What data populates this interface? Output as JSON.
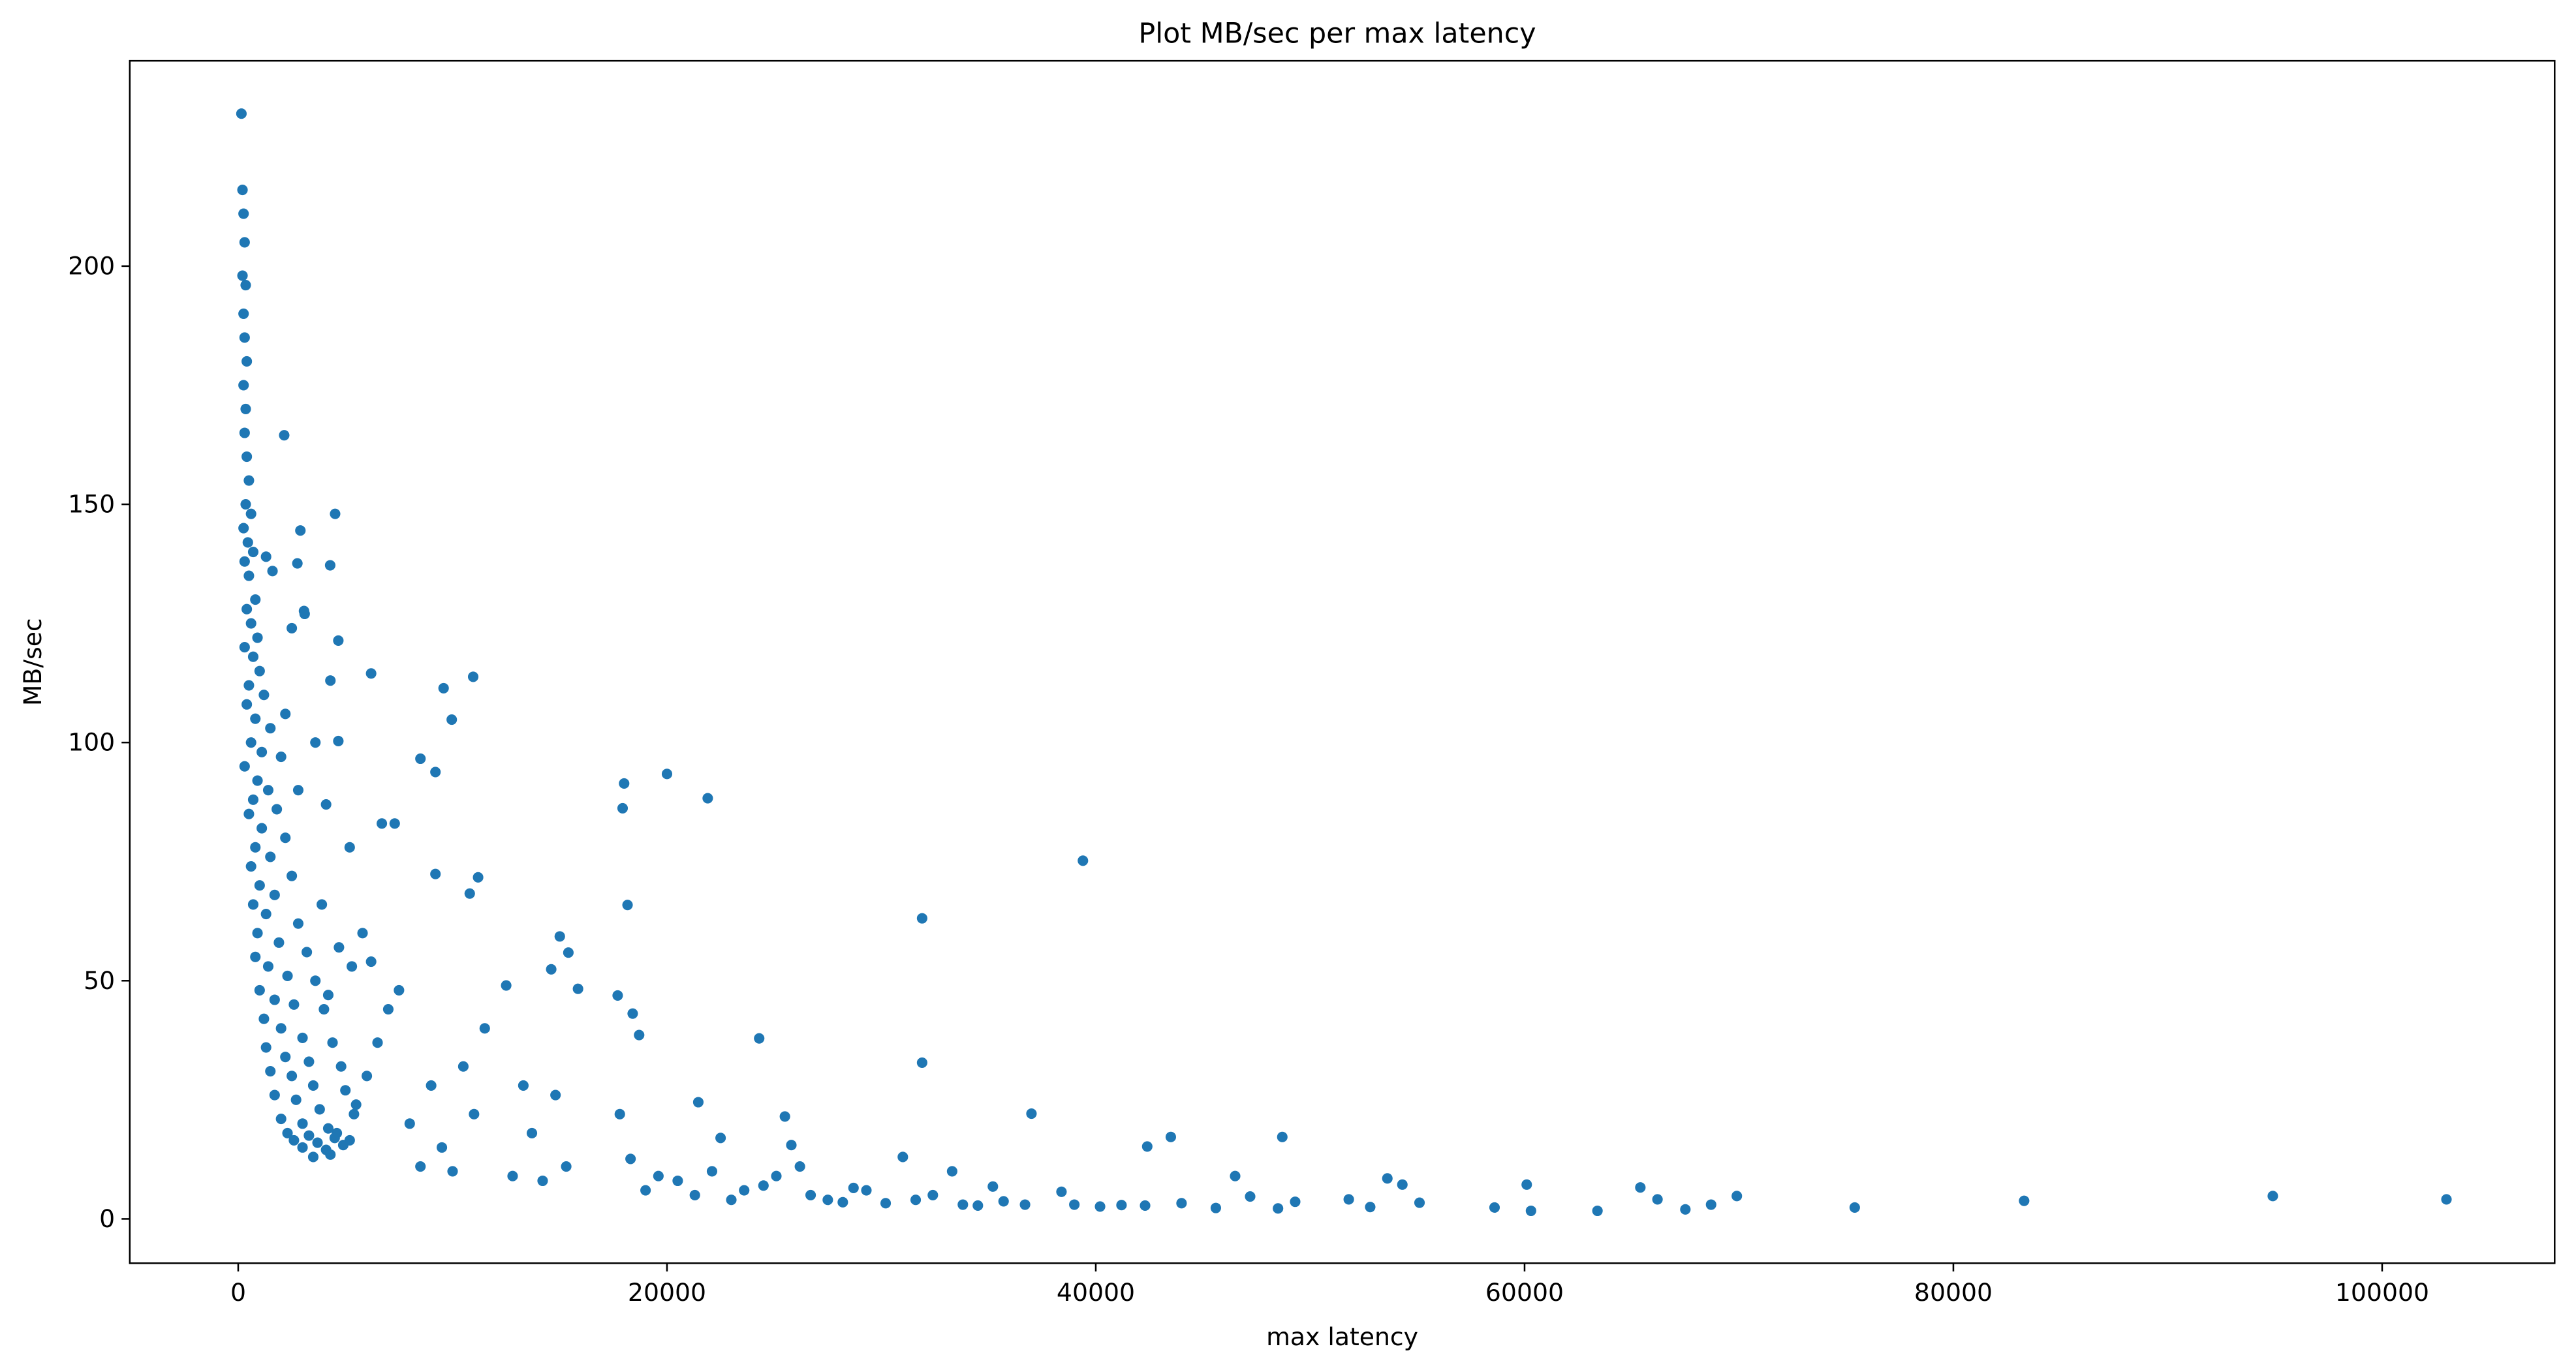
{
  "chart_data": {
    "type": "scatter",
    "title": "Plot MB/sec per max latency",
    "x_label": "max latency",
    "y_label": "MB/sec",
    "color": "#1f77b4",
    "x": [
      150,
      200,
      250,
      300,
      200,
      350,
      250,
      300,
      400,
      250,
      350,
      300,
      400,
      500,
      350,
      600,
      250,
      450,
      700,
      300,
      500,
      800,
      400,
      600,
      900,
      300,
      700,
      1000,
      500,
      1200,
      400,
      800,
      1500,
      600,
      1100,
      2000,
      300,
      900,
      1400,
      700,
      1800,
      500,
      1100,
      2200,
      800,
      1500,
      600,
      2500,
      1000,
      1700,
      700,
      1300,
      2800,
      900,
      1900,
      3200,
      800,
      1400,
      2300,
      3600,
      1000,
      1700,
      2600,
      4000,
      1200,
      2000,
      3000,
      4400,
      1300,
      2200,
      3300,
      4800,
      1500,
      2500,
      3500,
      5000,
      1700,
      2700,
      3800,
      5400,
      2000,
      3000,
      4200,
      2300,
      3300,
      4500,
      2600,
      3700,
      4900,
      3000,
      4100,
      4300,
      3500,
      5200,
      4600,
      5500,
      6000,
      6500,
      7000,
      6200,
      7500,
      8000,
      8500,
      9000,
      9500,
      10000,
      10500,
      11000,
      11500,
      12500,
      12800,
      13300,
      13700,
      14200,
      14800,
      15300,
      6700,
      7300,
      5800,
      5200,
      4100,
      4300,
      2500,
      3100,
      1600,
      1300,
      2200,
      3600,
      2800,
      4700,
      5300,
      3900,
      4200,
      2145,
      4520,
      2900,
      2760,
      4290,
      3070,
      4670,
      6200,
      10960,
      9580,
      9960,
      4670,
      8500,
      9200,
      18000,
      20000,
      21900,
      17930,
      39400,
      11190,
      9200,
      10800,
      18160,
      31900,
      15000,
      15400,
      14600,
      15850,
      17700,
      18400,
      18700,
      24300,
      31900,
      37000,
      21460,
      42400,
      43500,
      48700,
      46500,
      17800,
      18300,
      19000,
      19600,
      20500,
      21300,
      22100,
      22500,
      23000,
      23600,
      24500,
      25100,
      25500,
      25800,
      26200,
      26700,
      27500,
      28200,
      28700,
      29300,
      30200,
      31000,
      31600,
      32400,
      33300,
      33800,
      34500,
      35200,
      35700,
      36700,
      38400,
      39000,
      40200,
      41200,
      42300,
      44000,
      45600,
      47200,
      48500,
      49300,
      51800,
      53600,
      54300,
      52800,
      55100,
      58600,
      60100,
      60300,
      63400,
      65400,
      66200,
      67500,
      68700,
      69900,
      75400,
      83300,
      94900,
      103000
    ],
    "values": [
      232,
      216,
      211,
      205,
      198,
      196,
      190,
      185,
      180,
      175,
      170,
      165,
      160,
      155,
      150,
      148,
      145,
      142,
      140,
      138,
      135,
      130,
      128,
      125,
      122,
      120,
      118,
      115,
      112,
      110,
      108,
      105,
      103,
      100,
      98,
      97,
      95,
      92,
      90,
      88,
      86,
      85,
      82,
      80,
      78,
      76,
      74,
      72,
      70,
      68,
      66,
      64,
      62,
      60,
      58,
      56,
      55,
      53,
      51,
      50,
      48,
      46,
      45,
      44,
      42,
      40,
      38,
      37,
      36,
      34,
      33,
      32,
      31,
      30,
      28,
      27,
      26,
      25,
      23,
      22,
      21,
      20,
      19,
      18,
      17.5,
      17,
      16.5,
      16,
      15.5,
      15,
      14.5,
      13.5,
      13,
      16.5,
      18,
      24,
      30,
      37,
      44,
      54,
      48,
      20,
      11,
      28,
      15,
      10,
      32,
      22,
      40,
      49,
      9,
      28,
      18,
      8,
      26,
      11,
      83,
      83,
      60,
      78,
      87,
      113,
      124,
      127,
      136,
      139,
      106,
      100,
      90,
      57,
      53,
      66,
      47,
      164.5,
      148,
      144.5,
      137.6,
      137.2,
      127.6,
      121.4,
      114.5,
      113.8,
      111.4,
      104.8,
      100.3,
      96.6,
      93.8,
      91.4,
      93.4,
      88.3,
      86.2,
      75.2,
      71.7,
      72.4,
      68.3,
      65.9,
      63.1,
      59.3,
      55.9,
      52.4,
      48.3,
      46.9,
      43.1,
      38.6,
      37.9,
      32.8,
      22.1,
      24.5,
      15.2,
      17.2,
      17.2,
      9,
      22,
      12.6,
      6,
      9,
      8,
      5,
      10,
      17,
      4,
      6,
      7,
      9,
      21.5,
      15.5,
      11,
      5,
      4,
      3.5,
      6.5,
      6,
      3.3,
      13,
      4,
      5,
      10,
      3,
      2.8,
      6.8,
      3.7,
      3,
      5.7,
      3,
      2.6,
      2.9,
      2.8,
      3.3,
      2.3,
      4.7,
      2.2,
      3.6,
      4.1,
      8.5,
      7.2,
      2.5,
      3.4,
      2.4,
      7.2,
      1.7,
      1.7,
      6.6,
      4.1,
      2,
      3,
      4.8,
      2.4,
      3.8,
      4.8,
      4.1
    ],
    "xlim": [
      -5057,
      108046
    ],
    "ylim": [
      -9.3,
      243.1
    ],
    "xticks": [
      0,
      20000,
      40000,
      60000,
      80000,
      100000
    ],
    "yticks": [
      0,
      50,
      100,
      150,
      200
    ]
  }
}
